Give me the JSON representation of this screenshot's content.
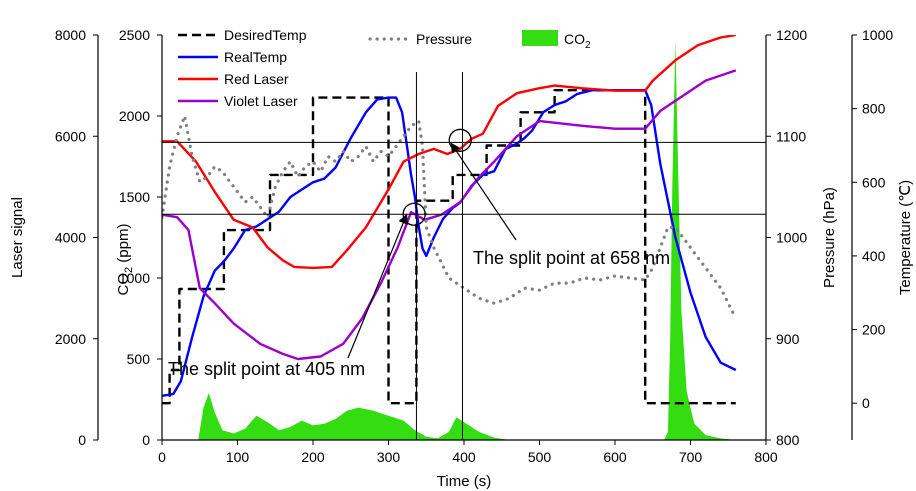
{
  "chart_data": {
    "type": "line",
    "axes": {
      "x": {
        "label": "Time (s)",
        "range": [
          0,
          800
        ],
        "ticks": [
          0,
          100,
          200,
          300,
          400,
          500,
          600,
          700,
          800
        ]
      },
      "laser": {
        "label": "Laser signal",
        "range": [
          0,
          8000
        ],
        "ticks": [
          0,
          2000,
          4000,
          6000,
          8000
        ]
      },
      "co2": {
        "label": "CO",
        "label_sub": "2",
        "label_tail": " (ppm)",
        "range": [
          0,
          2500
        ],
        "ticks": [
          0,
          500,
          1000,
          1500,
          2000,
          2500
        ]
      },
      "pressure": {
        "label": "Pressure (hPa)",
        "range": [
          800,
          1200
        ],
        "ticks": [
          800,
          900,
          1000,
          1100,
          1200
        ]
      },
      "temperature": {
        "label": "Temperature (℃)",
        "range": [
          -100,
          1000
        ],
        "ticks": [
          0,
          200,
          400,
          600,
          800,
          1000
        ]
      }
    },
    "series": [
      {
        "name": "DesiredTemp",
        "axis": "temperature",
        "color": "#000000",
        "style": "dashed",
        "points": [
          [
            0,
            0
          ],
          [
            10,
            0
          ],
          [
            10,
            90
          ],
          [
            23,
            90
          ],
          [
            23,
            310
          ],
          [
            82,
            310
          ],
          [
            82,
            470
          ],
          [
            120,
            470
          ],
          [
            120,
            470
          ],
          [
            143,
            470
          ],
          [
            143,
            620
          ],
          [
            200,
            620
          ],
          [
            200,
            830
          ],
          [
            300,
            830
          ],
          [
            300,
            0
          ],
          [
            337,
            0
          ],
          [
            337,
            550
          ],
          [
            385,
            550
          ],
          [
            385,
            620
          ],
          [
            430,
            620
          ],
          [
            430,
            700
          ],
          [
            475,
            700
          ],
          [
            475,
            790
          ],
          [
            520,
            790
          ],
          [
            520,
            850
          ],
          [
            640,
            850
          ],
          [
            640,
            0
          ],
          [
            760,
            0
          ]
        ]
      },
      {
        "name": "RealTemp",
        "axis": "temperature",
        "color": "#0000ff",
        "style": "solid",
        "points": [
          [
            0,
            20
          ],
          [
            15,
            25
          ],
          [
            25,
            60
          ],
          [
            40,
            180
          ],
          [
            55,
            290
          ],
          [
            70,
            360
          ],
          [
            82,
            385
          ],
          [
            95,
            420
          ],
          [
            110,
            470
          ],
          [
            125,
            480
          ],
          [
            140,
            500
          ],
          [
            155,
            520
          ],
          [
            170,
            560
          ],
          [
            185,
            580
          ],
          [
            200,
            600
          ],
          [
            215,
            610
          ],
          [
            230,
            640
          ],
          [
            250,
            720
          ],
          [
            270,
            790
          ],
          [
            285,
            825
          ],
          [
            300,
            830
          ],
          [
            310,
            830
          ],
          [
            318,
            790
          ],
          [
            325,
            690
          ],
          [
            330,
            620
          ],
          [
            335,
            560
          ],
          [
            340,
            480
          ],
          [
            345,
            420
          ],
          [
            350,
            400
          ],
          [
            360,
            450
          ],
          [
            372,
            500
          ],
          [
            385,
            530
          ],
          [
            395,
            545
          ],
          [
            410,
            590
          ],
          [
            425,
            620
          ],
          [
            440,
            630
          ],
          [
            455,
            690
          ],
          [
            470,
            705
          ],
          [
            480,
            720
          ],
          [
            490,
            740
          ],
          [
            505,
            790
          ],
          [
            520,
            810
          ],
          [
            535,
            820
          ],
          [
            550,
            840
          ],
          [
            570,
            850
          ],
          [
            600,
            850
          ],
          [
            620,
            850
          ],
          [
            640,
            850
          ],
          [
            648,
            810
          ],
          [
            660,
            650
          ],
          [
            680,
            450
          ],
          [
            700,
            300
          ],
          [
            720,
            180
          ],
          [
            740,
            110
          ],
          [
            760,
            90
          ]
        ]
      },
      {
        "name": "Red Laser",
        "axis": "laser",
        "color": "#ff0000",
        "style": "solid",
        "points": [
          [
            0,
            5900
          ],
          [
            20,
            5900
          ],
          [
            45,
            5500
          ],
          [
            70,
            4900
          ],
          [
            95,
            4350
          ],
          [
            120,
            4200
          ],
          [
            140,
            3800
          ],
          [
            160,
            3550
          ],
          [
            175,
            3420
          ],
          [
            200,
            3400
          ],
          [
            225,
            3420
          ],
          [
            245,
            3750
          ],
          [
            270,
            4200
          ],
          [
            300,
            4950
          ],
          [
            320,
            5500
          ],
          [
            340,
            5650
          ],
          [
            360,
            5750
          ],
          [
            378,
            5650
          ],
          [
            395,
            5750
          ],
          [
            410,
            5950
          ],
          [
            425,
            6050
          ],
          [
            445,
            6600
          ],
          [
            470,
            6850
          ],
          [
            500,
            6950
          ],
          [
            520,
            7000
          ],
          [
            555,
            6950
          ],
          [
            600,
            6900
          ],
          [
            640,
            6900
          ],
          [
            650,
            7100
          ],
          [
            680,
            7500
          ],
          [
            710,
            7800
          ],
          [
            740,
            7950
          ],
          [
            760,
            8000
          ]
        ]
      },
      {
        "name": "Violet Laser",
        "axis": "laser",
        "color": "#9900cc",
        "style": "solid",
        "points": [
          [
            0,
            4450
          ],
          [
            20,
            4400
          ],
          [
            35,
            4150
          ],
          [
            50,
            3000
          ],
          [
            70,
            2700
          ],
          [
            95,
            2300
          ],
          [
            130,
            1900
          ],
          [
            160,
            1700
          ],
          [
            180,
            1600
          ],
          [
            210,
            1650
          ],
          [
            240,
            1900
          ],
          [
            265,
            2400
          ],
          [
            290,
            3100
          ],
          [
            312,
            3800
          ],
          [
            330,
            4500
          ],
          [
            348,
            4350
          ],
          [
            370,
            4450
          ],
          [
            395,
            4700
          ],
          [
            420,
            5200
          ],
          [
            440,
            5500
          ],
          [
            470,
            6000
          ],
          [
            500,
            6300
          ],
          [
            530,
            6250
          ],
          [
            560,
            6200
          ],
          [
            600,
            6150
          ],
          [
            640,
            6150
          ],
          [
            660,
            6500
          ],
          [
            690,
            6800
          ],
          [
            720,
            7100
          ],
          [
            760,
            7300
          ]
        ]
      },
      {
        "name": "Pressure",
        "axis": "pressure",
        "color": "#808080",
        "style": "dotted",
        "points": [
          [
            0,
            1020
          ],
          [
            10,
            1070
          ],
          [
            20,
            1100
          ],
          [
            30,
            1120
          ],
          [
            40,
            1080
          ],
          [
            50,
            1055
          ],
          [
            60,
            1060
          ],
          [
            70,
            1070
          ],
          [
            80,
            1065
          ],
          [
            90,
            1055
          ],
          [
            100,
            1045
          ],
          [
            110,
            1035
          ],
          [
            120,
            1040
          ],
          [
            130,
            1030
          ],
          [
            140,
            1020
          ],
          [
            150,
            1050
          ],
          [
            160,
            1065
          ],
          [
            170,
            1075
          ],
          [
            180,
            1060
          ],
          [
            190,
            1070
          ],
          [
            200,
            1075
          ],
          [
            210,
            1065
          ],
          [
            220,
            1080
          ],
          [
            230,
            1075
          ],
          [
            240,
            1085
          ],
          [
            250,
            1075
          ],
          [
            260,
            1080
          ],
          [
            270,
            1090
          ],
          [
            280,
            1075
          ],
          [
            290,
            1085
          ],
          [
            300,
            1080
          ],
          [
            310,
            1090
          ],
          [
            320,
            1100
          ],
          [
            330,
            1110
          ],
          [
            340,
            1115
          ],
          [
            345,
            1090
          ],
          [
            350,
            1010
          ],
          [
            360,
            990
          ],
          [
            370,
            975
          ],
          [
            380,
            960
          ],
          [
            390,
            955
          ],
          [
            400,
            950
          ],
          [
            420,
            940
          ],
          [
            440,
            935
          ],
          [
            460,
            940
          ],
          [
            480,
            950
          ],
          [
            500,
            948
          ],
          [
            520,
            955
          ],
          [
            540,
            955
          ],
          [
            560,
            960
          ],
          [
            580,
            958
          ],
          [
            600,
            962
          ],
          [
            620,
            960
          ],
          [
            640,
            958
          ],
          [
            650,
            970
          ],
          [
            660,
            990
          ],
          [
            670,
            1010
          ],
          [
            680,
            1010
          ],
          [
            690,
            1000
          ],
          [
            700,
            990
          ],
          [
            710,
            980
          ],
          [
            720,
            970
          ],
          [
            740,
            950
          ],
          [
            760,
            920
          ]
        ]
      },
      {
        "name": "CO",
        "name_sub": "2",
        "axis": "co2",
        "color": "#33dd11",
        "style": "area",
        "points": [
          [
            48,
            0
          ],
          [
            55,
            200
          ],
          [
            62,
            290
          ],
          [
            70,
            170
          ],
          [
            80,
            60
          ],
          [
            95,
            40
          ],
          [
            110,
            70
          ],
          [
            125,
            150
          ],
          [
            140,
            110
          ],
          [
            155,
            60
          ],
          [
            170,
            80
          ],
          [
            185,
            120
          ],
          [
            200,
            90
          ],
          [
            215,
            100
          ],
          [
            230,
            130
          ],
          [
            245,
            180
          ],
          [
            260,
            200
          ],
          [
            280,
            180
          ],
          [
            300,
            150
          ],
          [
            320,
            120
          ],
          [
            335,
            60
          ],
          [
            350,
            20
          ],
          [
            365,
            10
          ],
          [
            380,
            50
          ],
          [
            390,
            140
          ],
          [
            400,
            110
          ],
          [
            420,
            50
          ],
          [
            440,
            15
          ],
          [
            460,
            0
          ],
          [
            665,
            0
          ],
          [
            670,
            50
          ],
          [
            673,
            600
          ],
          [
            676,
            1600
          ],
          [
            680,
            2470
          ],
          [
            684,
            1600
          ],
          [
            688,
            800
          ],
          [
            695,
            300
          ],
          [
            705,
            100
          ],
          [
            720,
            30
          ],
          [
            740,
            10
          ],
          [
            760,
            0
          ]
        ]
      }
    ],
    "reference_lines": {
      "horizontal_laser": [
        5880,
        4460
      ],
      "vertical_time": [
        337,
        398
      ]
    },
    "markers": [
      {
        "name": "split-405",
        "x": 334,
        "laser": 4460
      },
      {
        "name": "split-658",
        "x": 395,
        "laser": 5920
      }
    ],
    "annotations": [
      {
        "text": "The split point at 405 nm",
        "points_to": [
          324,
          4450
        ]
      },
      {
        "text": "The split point at 658 nm",
        "points_to": [
          383,
          5860
        ]
      }
    ],
    "legend": {
      "placement": "top",
      "entries": [
        "DesiredTemp",
        "RealTemp",
        "Red Laser",
        "Violet Laser",
        "Pressure",
        "CO2"
      ]
    }
  }
}
